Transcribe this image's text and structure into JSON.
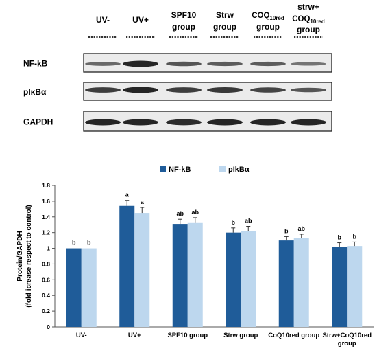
{
  "blot": {
    "lane_labels": [
      [
        "UV-"
      ],
      [
        "UV+"
      ],
      [
        "SPF10",
        "group"
      ],
      [
        "Strw",
        "group"
      ],
      [
        "COQ",
        "10red",
        "group"
      ],
      [
        "strw+",
        "COQ",
        "10red",
        "group"
      ]
    ],
    "row_labels": [
      "NF-kB",
      "pIκBα",
      "GAPDH"
    ],
    "band_intensity": {
      "NF-kB": [
        0.45,
        1.0,
        0.6,
        0.55,
        0.55,
        0.35
      ],
      "pIκBα": [
        0.8,
        1.0,
        0.8,
        0.85,
        0.75,
        0.6
      ],
      "GAPDH": [
        1.0,
        1.0,
        0.95,
        1.0,
        1.0,
        1.0
      ]
    }
  },
  "chart_data": {
    "type": "bar",
    "ylabel_line1": "Protein/GAPDH",
    "ylabel_line2": "(fold icrease respect to control)",
    "ylim": [
      0,
      1.8
    ],
    "yticks": [
      "0",
      "0.2",
      "0.4",
      "0.6",
      "0.8",
      "1",
      "1.2",
      "1.4",
      "1.6",
      "1.8"
    ],
    "categories": [
      [
        "UV-"
      ],
      [
        "UV+"
      ],
      [
        "SPF10 group"
      ],
      [
        "Strw group"
      ],
      [
        "CoQ10red group"
      ],
      [
        "Strw+CoQ10red",
        "group"
      ]
    ],
    "series": [
      {
        "name": "NF-kB",
        "color": "#1f5c99",
        "values": [
          1.0,
          1.54,
          1.31,
          1.2,
          1.1,
          1.02
        ],
        "errors": [
          0,
          0.07,
          0.06,
          0.06,
          0.05,
          0.05
        ],
        "letters": [
          "b",
          "a",
          "ab",
          "b",
          "b",
          "b"
        ]
      },
      {
        "name": "pIkBα",
        "color": "#bdd7ee",
        "values": [
          1.0,
          1.45,
          1.33,
          1.22,
          1.13,
          1.03
        ],
        "errors": [
          0,
          0.07,
          0.06,
          0.06,
          0.05,
          0.05
        ],
        "letters": [
          "b",
          "a",
          "ab",
          "ab",
          "ab",
          "b"
        ]
      }
    ],
    "legend_position": "top",
    "grid": false
  }
}
